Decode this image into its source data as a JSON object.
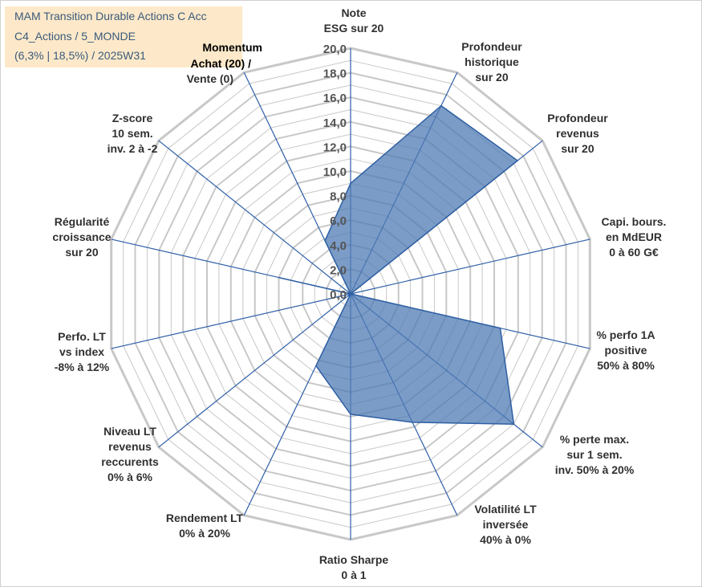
{
  "title": {
    "line1": "MAM Transition Durable Actions C Acc",
    "line2": "C4_Actions / 5_MONDE",
    "line3": "(6,3% | 18,5%) / 2025W31"
  },
  "momentum": {
    "line1": "Momentum",
    "line2": "Achat (20) /",
    "line3": "Vente (0)"
  },
  "colors": {
    "fill": "#4f7bb4",
    "stroke": "#2e5fa3",
    "grid": "#c8c8c8",
    "spoke": "#2f5fa8",
    "title_bg": "#fde9c9",
    "title_text": "#3a5a7c",
    "momentum_text": "#a59c7d"
  },
  "chart_data": {
    "type": "radar",
    "rlim": [
      0,
      20
    ],
    "tick_labels": [
      "0,0",
      "2,0",
      "4,0",
      "6,0",
      "8,0",
      "10,0",
      "12,0",
      "14,0",
      "16,0",
      "18,0",
      "20,0"
    ],
    "categories": [
      [
        "Note",
        "ESG sur 20"
      ],
      [
        "Profondeur",
        "historique",
        "sur 20"
      ],
      [
        "Profondeur",
        "revenus",
        "sur 20"
      ],
      [
        "Capi. bours.",
        "en MdEUR",
        "0 à 60 G€"
      ],
      [
        "% perfo 1A",
        "positive",
        "50% à 80%"
      ],
      [
        "% perte max.",
        "sur 1 sem.",
        "inv. 50% à 20%"
      ],
      [
        "Volatilité LT",
        "inversée",
        "40% à 0%"
      ],
      [
        "Ratio Sharpe",
        "0 à 1"
      ],
      [
        "Rendement LT",
        "0% à 20%"
      ],
      [
        "Niveau LT",
        "revenus",
        "reccurents",
        "0% à 6%"
      ],
      [
        "Perfo. LT",
        "vs index",
        "-8% à 12%"
      ],
      [
        "Régularité",
        "croissance",
        "sur 20"
      ],
      [
        "Z-score",
        "10 sem.",
        "inv. 2 à -2"
      ],
      [
        "Momentum",
        "Achat (20) /",
        "Vente (0)"
      ]
    ],
    "series": [
      {
        "values": [
          9.0,
          17.0,
          17.4,
          0.0,
          12.5,
          17.0,
          11.6,
          9.8,
          6.5,
          0.0,
          0.0,
          6.0,
          0.0,
          4.8
        ]
      }
    ]
  }
}
